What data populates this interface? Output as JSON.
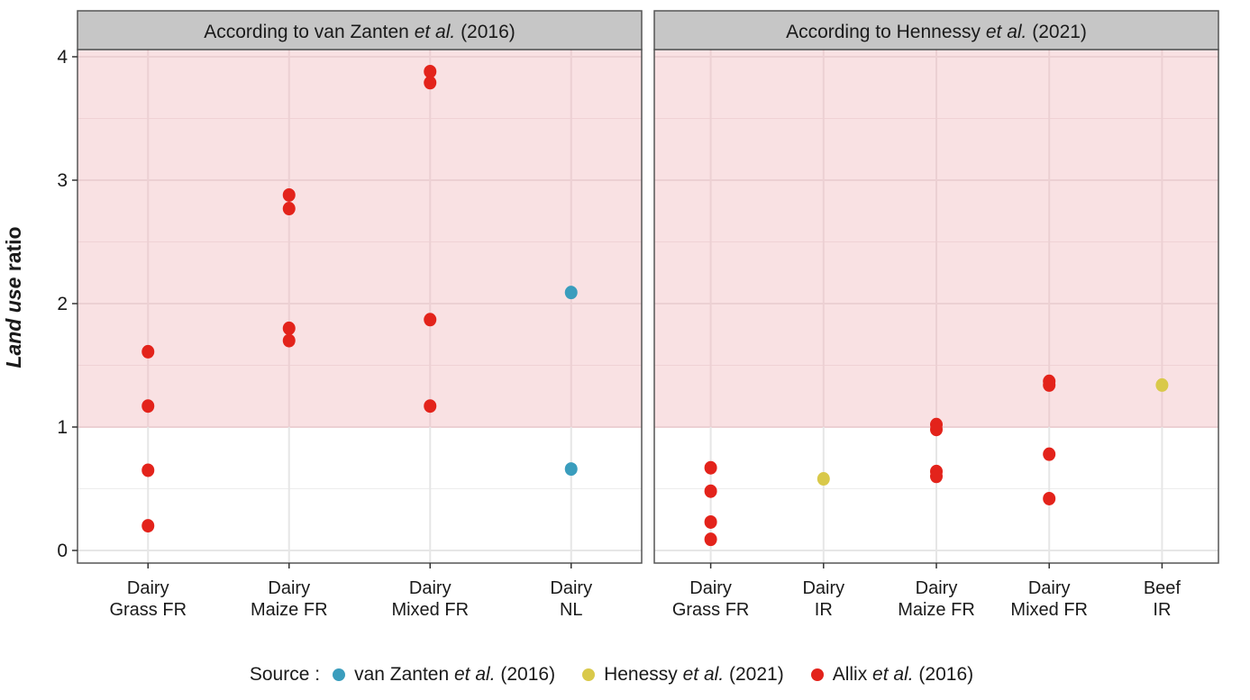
{
  "chart_data": {
    "type": "scatter",
    "ylabel_parts": [
      {
        "text": "Land use",
        "italic": true
      },
      {
        "text": " ratio",
        "italic": false
      }
    ],
    "ylim": [
      -0.1,
      4.05
    ],
    "yticks": [
      0,
      1,
      2,
      3,
      4
    ],
    "ytick_labels": [
      "0",
      "1",
      "2",
      "3",
      "4"
    ],
    "shaded_region": {
      "from": 1,
      "to": 4.05,
      "color": "#f9e1e3"
    },
    "grid": true,
    "legend_position": "bottom",
    "legend_title": "Source :",
    "sources": [
      {
        "key": "vz",
        "name_parts": [
          {
            "text": "van Zanten ",
            "italic": false
          },
          {
            "text": "et al.",
            "italic": true
          },
          {
            "text": " (2016)",
            "italic": false
          }
        ],
        "color": "#3a9dbd"
      },
      {
        "key": "hen",
        "name_parts": [
          {
            "text": "Henessy ",
            "italic": false
          },
          {
            "text": "et al.",
            "italic": true
          },
          {
            "text": " (2021)",
            "italic": false
          }
        ],
        "color": "#d9c94a"
      },
      {
        "key": "allix",
        "name_parts": [
          {
            "text": "Allix ",
            "italic": false
          },
          {
            "text": "et al.",
            "italic": true
          },
          {
            "text": " (2016)",
            "italic": false
          }
        ],
        "color": "#e3231b"
      }
    ],
    "panels": [
      {
        "title_parts": [
          {
            "text": "According to van Zanten ",
            "italic": false
          },
          {
            "text": "et al.",
            "italic": true
          },
          {
            "text": " (2016)",
            "italic": false
          }
        ],
        "categories": [
          [
            "Dairy",
            "Grass FR"
          ],
          [
            "Dairy",
            "Maize FR"
          ],
          [
            "Dairy",
            "Mixed FR"
          ],
          [
            "Dairy",
            "NL"
          ]
        ],
        "points": [
          {
            "cat": 0,
            "y": 1.61,
            "source": "allix"
          },
          {
            "cat": 0,
            "y": 1.17,
            "source": "allix"
          },
          {
            "cat": 0,
            "y": 0.65,
            "source": "allix"
          },
          {
            "cat": 0,
            "y": 0.2,
            "source": "allix"
          },
          {
            "cat": 1,
            "y": 2.88,
            "source": "allix"
          },
          {
            "cat": 1,
            "y": 2.77,
            "source": "allix"
          },
          {
            "cat": 1,
            "y": 1.8,
            "source": "allix"
          },
          {
            "cat": 1,
            "y": 1.7,
            "source": "allix"
          },
          {
            "cat": 2,
            "y": 3.88,
            "source": "allix"
          },
          {
            "cat": 2,
            "y": 3.79,
            "source": "allix"
          },
          {
            "cat": 2,
            "y": 1.87,
            "source": "allix"
          },
          {
            "cat": 2,
            "y": 1.17,
            "source": "allix"
          },
          {
            "cat": 3,
            "y": 2.09,
            "source": "vz"
          },
          {
            "cat": 3,
            "y": 0.66,
            "source": "vz"
          }
        ]
      },
      {
        "title_parts": [
          {
            "text": "According to Hennessy ",
            "italic": false
          },
          {
            "text": "et al.",
            "italic": true
          },
          {
            "text": " (2021)",
            "italic": false
          }
        ],
        "categories": [
          [
            "Dairy",
            "Grass FR"
          ],
          [
            "Dairy",
            "IR"
          ],
          [
            "Dairy",
            "Maize FR"
          ],
          [
            "Dairy",
            "Mixed FR"
          ],
          [
            "Beef",
            "IR"
          ]
        ],
        "points": [
          {
            "cat": 0,
            "y": 0.67,
            "source": "allix"
          },
          {
            "cat": 0,
            "y": 0.48,
            "source": "allix"
          },
          {
            "cat": 0,
            "y": 0.23,
            "source": "allix"
          },
          {
            "cat": 0,
            "y": 0.09,
            "source": "allix"
          },
          {
            "cat": 1,
            "y": 0.58,
            "source": "hen"
          },
          {
            "cat": 2,
            "y": 1.02,
            "source": "allix"
          },
          {
            "cat": 2,
            "y": 0.98,
            "source": "allix"
          },
          {
            "cat": 2,
            "y": 0.64,
            "source": "allix"
          },
          {
            "cat": 2,
            "y": 0.6,
            "source": "allix"
          },
          {
            "cat": 3,
            "y": 1.37,
            "source": "allix"
          },
          {
            "cat": 3,
            "y": 1.34,
            "source": "allix"
          },
          {
            "cat": 3,
            "y": 0.78,
            "source": "allix"
          },
          {
            "cat": 3,
            "y": 0.42,
            "source": "allix"
          },
          {
            "cat": 4,
            "y": 1.34,
            "source": "hen"
          }
        ]
      }
    ]
  }
}
